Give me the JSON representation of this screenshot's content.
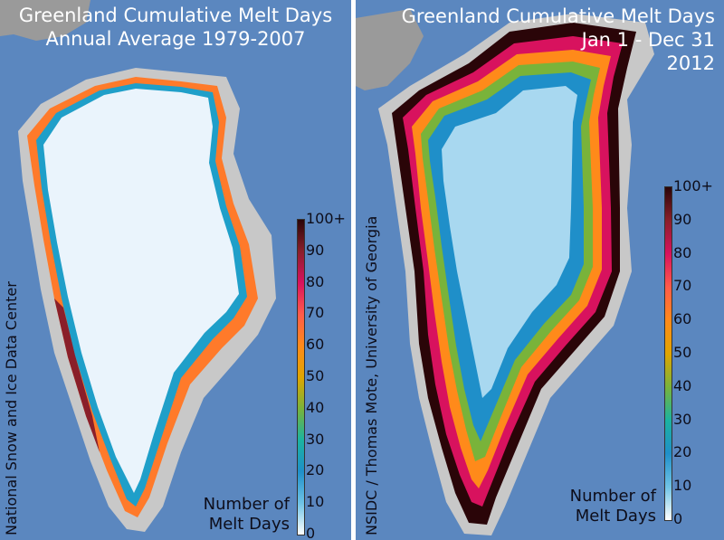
{
  "left_panel": {
    "title_lines": [
      "Greenland Cumulative Melt Days",
      "Annual Average 1979-2007"
    ],
    "credit": "National Snow and Ice Data Center",
    "legend_title": [
      "Number of",
      "Melt Days"
    ],
    "colorbar_ticks": [
      "0",
      "10",
      "20",
      "30",
      "40",
      "50",
      "60",
      "70",
      "80",
      "90",
      "100+"
    ]
  },
  "right_panel": {
    "title_lines": [
      "Greenland Cumulative Melt Days",
      "Jan 1 - Dec 31",
      "2012"
    ],
    "credit": "NSIDC / Thomas Mote, University of Georgia",
    "legend_title": [
      "Number of",
      "Melt Days"
    ],
    "colorbar_ticks": [
      "0",
      "10",
      "20",
      "30",
      "40",
      "50",
      "60",
      "70",
      "80",
      "90",
      "100+"
    ]
  },
  "colors": {
    "ocean": "#5b87bf",
    "land": "#c8c8c8",
    "low_melt": "#eaf4fc",
    "high_melt": "#2a0508"
  }
}
